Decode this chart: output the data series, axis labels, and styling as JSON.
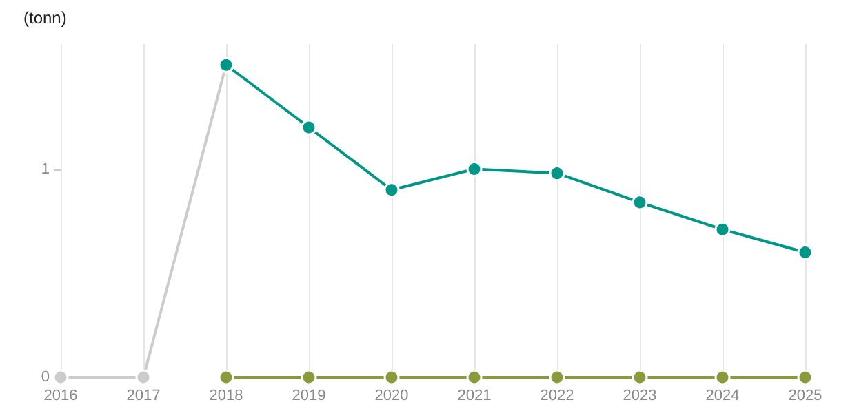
{
  "chart_data": {
    "type": "line",
    "ylabel": "(tonn)",
    "xlim": [
      2016,
      2025
    ],
    "xticks": [
      2016,
      2017,
      2018,
      2019,
      2020,
      2021,
      2022,
      2023,
      2024,
      2025
    ],
    "ylim": [
      0,
      1.6
    ],
    "yticks": [
      0,
      1
    ],
    "grid": "x",
    "marker": "circle",
    "line_style": "solid",
    "series": [
      {
        "color": "#cccccc",
        "x": [
          2016,
          2017,
          2018
        ],
        "values": [
          0,
          0,
          1.5
        ]
      },
      {
        "color": "#009688",
        "x": [
          2018,
          2019,
          2020,
          2021,
          2022,
          2023,
          2024,
          2025
        ],
        "values": [
          1.5,
          1.2,
          0.9,
          1.0,
          0.98,
          0.84,
          0.71,
          0.6
        ]
      },
      {
        "color": "#8a9a3c",
        "x": [
          2018,
          2019,
          2020,
          2021,
          2022,
          2023,
          2024,
          2025
        ],
        "values": [
          0,
          0,
          0,
          0,
          0,
          0,
          0,
          0
        ]
      }
    ]
  }
}
